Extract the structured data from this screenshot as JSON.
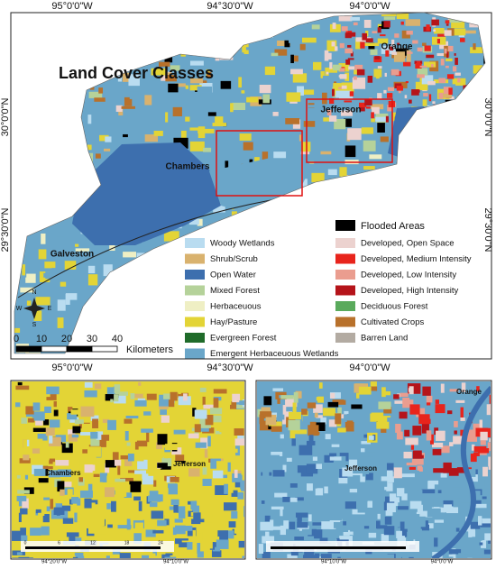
{
  "title": "Land Cover Classes",
  "top_lon_labels": [
    "95°0'0\"W",
    "94°30'0\"W",
    "94°0'0\"W"
  ],
  "lat_labels": [
    "30°0'0\"N",
    "29°30'0\"N"
  ],
  "bottom_lon_labels": [
    "95°0'0\"W",
    "94°30'0\"W",
    "94°0'0\"W"
  ],
  "places": [
    "Orange",
    "Jefferson",
    "Chambers",
    "Galveston"
  ],
  "compass": [
    "N",
    "S",
    "E",
    "W"
  ],
  "scale": {
    "ticks": [
      0,
      10,
      20,
      30,
      40
    ],
    "unit": "Kilometers"
  },
  "legend": {
    "flooded": {
      "label": "Flooded Areas",
      "color": "#000000"
    },
    "left": [
      {
        "label": "Woody Wetlands",
        "color": "#b9dcf0"
      },
      {
        "label": "Shrub/Scrub",
        "color": "#d9b26e"
      },
      {
        "label": "Open Water",
        "color": "#3d6fae"
      },
      {
        "label": "Mixed Forest",
        "color": "#b5d29a"
      },
      {
        "label": "Herbaceuous",
        "color": "#efefc4"
      },
      {
        "label": "Hay/Pasture",
        "color": "#e3d436"
      },
      {
        "label": "Evergreen Forest",
        "color": "#1f6b2a"
      },
      {
        "label": "Emergent Herbaceuous Wetlands",
        "color": "#6aa6c9"
      }
    ],
    "right": [
      {
        "label": "Developed, Open Space",
        "color": "#ecd2cf"
      },
      {
        "label": "Developed, Medium Intensity",
        "color": "#e8241c"
      },
      {
        "label": "Developed, Low Intensity",
        "color": "#ea9d8f"
      },
      {
        "label": "Developed, High Intensity",
        "color": "#b5141a"
      },
      {
        "label": "Deciduous Forest",
        "color": "#5aaa5c"
      },
      {
        "label": "Cultivated Crops",
        "color": "#b8712b"
      },
      {
        "label": "Barren Land",
        "color": "#b3aba2"
      }
    ]
  },
  "insets": [
    {
      "places": [
        "Chambers",
        "Jefferson"
      ],
      "lon_labels": [
        "94°20'0\"W",
        "94°10'0\"W"
      ],
      "scale_ticks": [
        0,
        6,
        12,
        18,
        24
      ]
    },
    {
      "places": [
        "Jefferson",
        "Orange"
      ],
      "lon_labels": [
        "94°10'0\"W",
        "94°0'0\"W"
      ]
    }
  ]
}
